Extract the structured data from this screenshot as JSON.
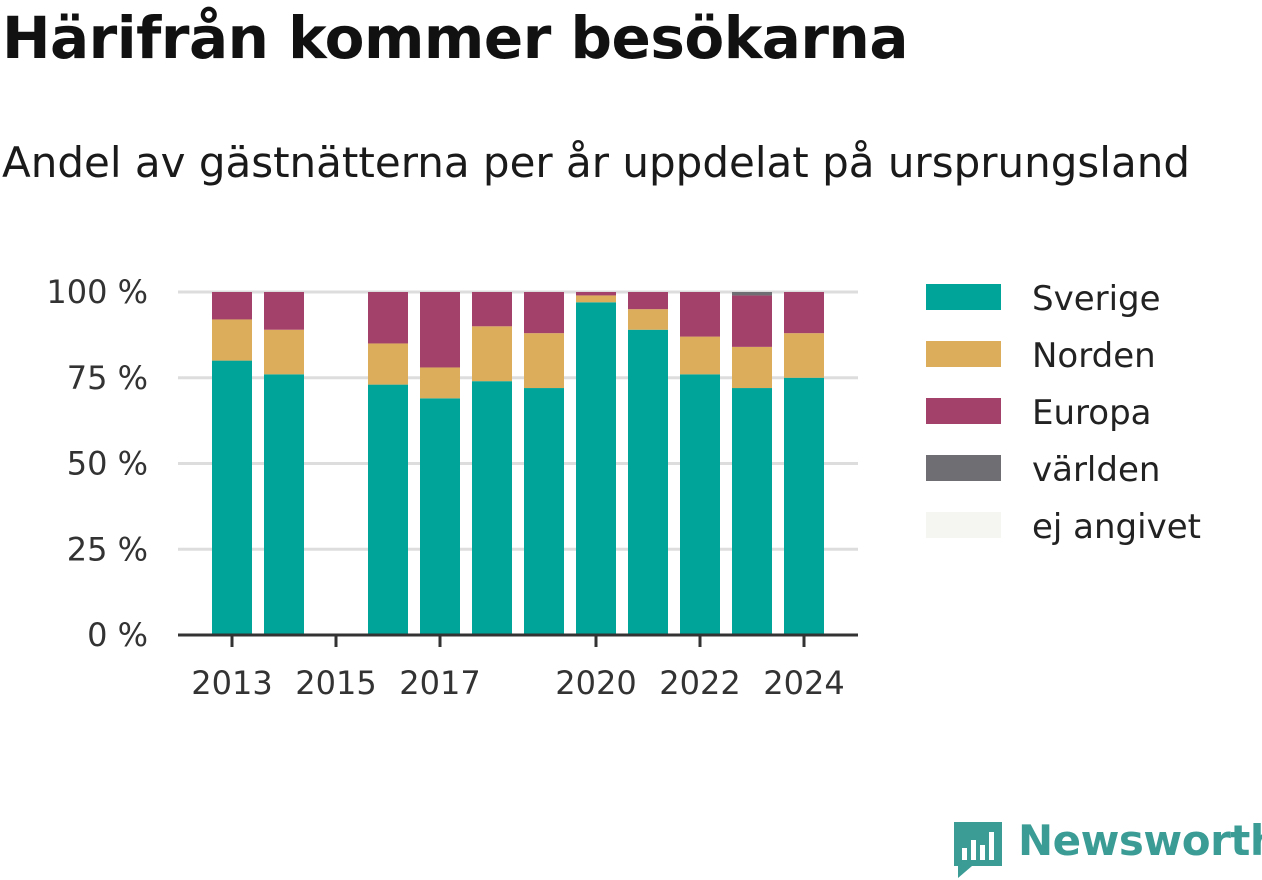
{
  "chart_data": {
    "type": "bar",
    "stacked": true,
    "title": "Härifrån kommer besökarna",
    "subtitle": "Andel av gästnätterna per år uppdelat på ursprungsland",
    "x": [
      2013,
      2014,
      2015,
      2016,
      2017,
      2018,
      2019,
      2020,
      2021,
      2022,
      2023,
      2024
    ],
    "x_tick_labels": [
      "2013",
      "2015",
      "2017",
      "2020",
      "2022",
      "2024"
    ],
    "x_tick_values": [
      2013,
      2015,
      2017,
      2020,
      2022,
      2024
    ],
    "y_tick_labels": [
      "0 %",
      "25 %",
      "50 %",
      "75 %",
      "100 %"
    ],
    "y_tick_values": [
      0,
      25,
      50,
      75,
      100
    ],
    "ylim": [
      0,
      100
    ],
    "grid": true,
    "legend_position": "right",
    "series": [
      {
        "name": "Sverige",
        "color": "#00a499",
        "values": [
          80,
          76,
          0,
          73,
          69,
          74,
          72,
          97,
          89,
          76,
          72,
          75
        ]
      },
      {
        "name": "Norden",
        "color": "#dcad5b",
        "values": [
          12,
          13,
          0,
          12,
          9,
          16,
          16,
          2,
          6,
          11,
          12,
          13
        ]
      },
      {
        "name": "Europa",
        "color": "#a4416a",
        "values": [
          8,
          11,
          0,
          15,
          22,
          10,
          12,
          1,
          5,
          13,
          15,
          12
        ]
      },
      {
        "name": "världen",
        "color": "#6e6e73",
        "values": [
          0,
          0,
          0,
          0,
          0,
          0,
          0,
          0,
          0,
          0,
          1,
          0
        ]
      },
      {
        "name": "ej angivet",
        "color": "#f5f5f2",
        "values": [
          0,
          0,
          0,
          0,
          0,
          0,
          0,
          0,
          0,
          0,
          0,
          0
        ]
      }
    ]
  },
  "brand": {
    "name": "Newsworthy",
    "color": "#3b9c96"
  }
}
